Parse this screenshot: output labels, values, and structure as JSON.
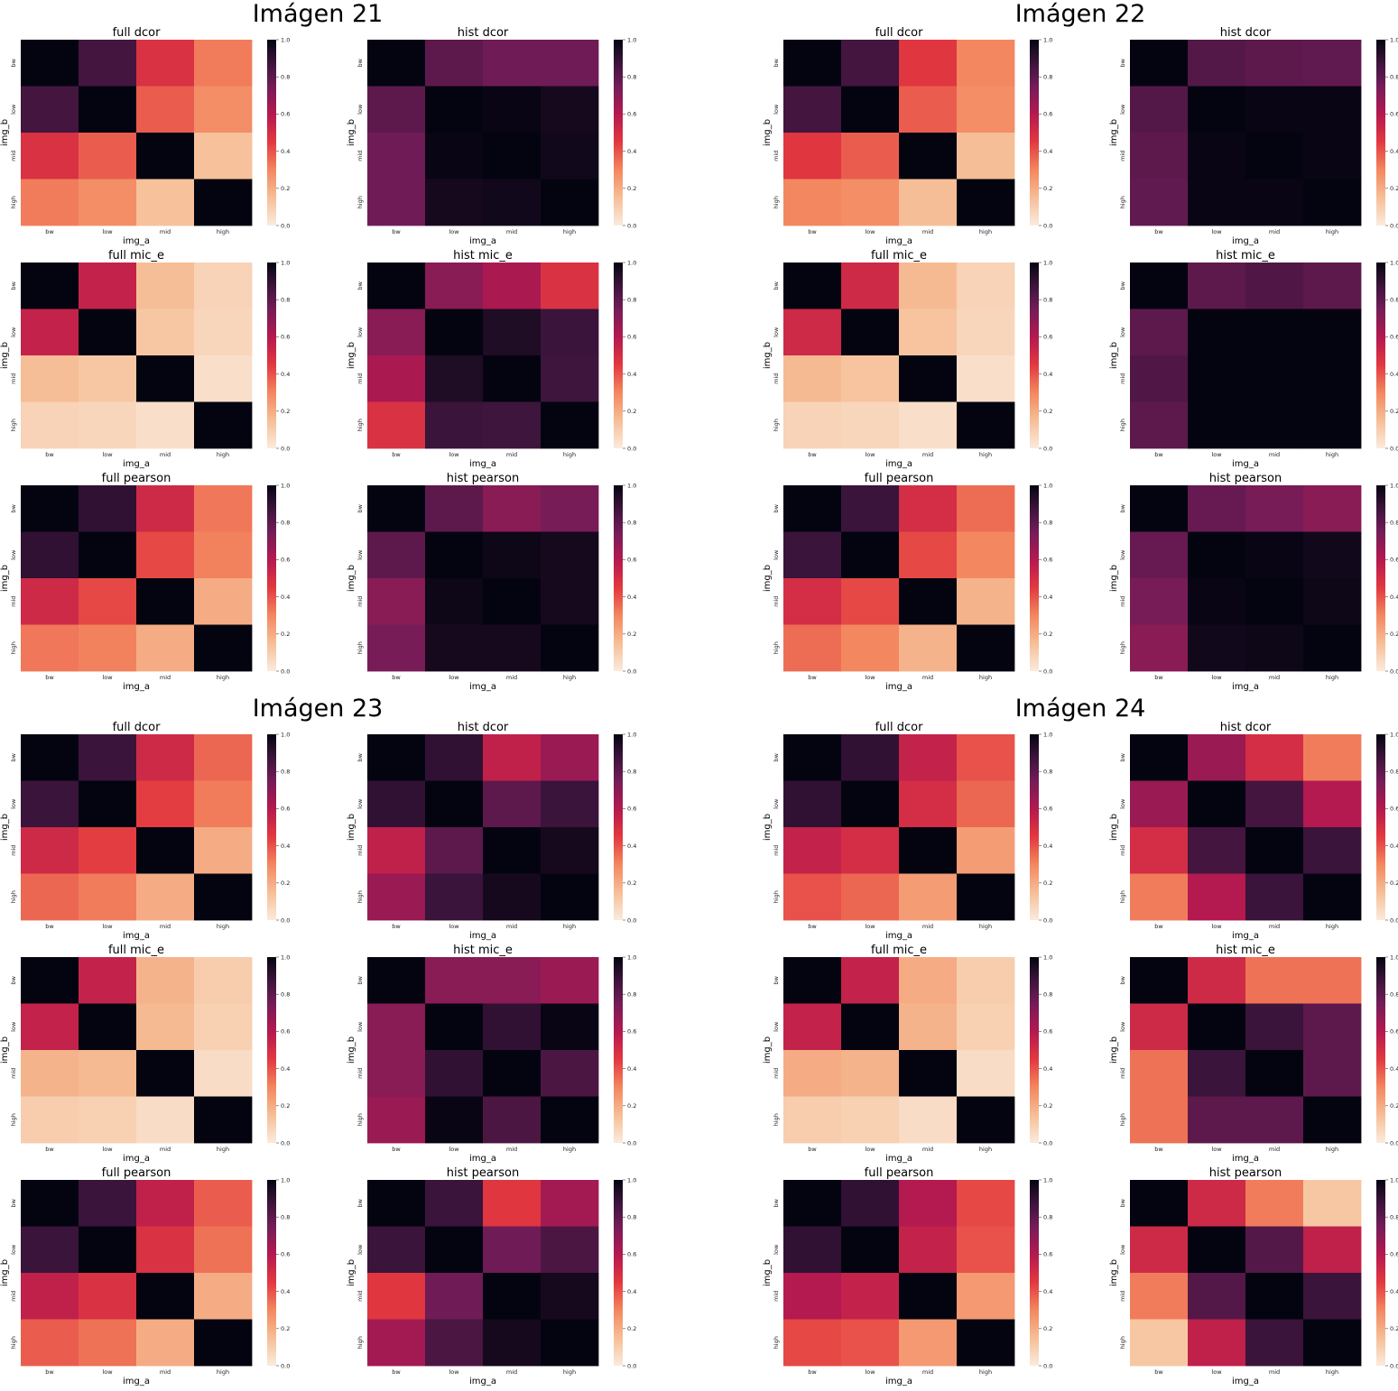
{
  "figure_titles": [
    "Imágen 21",
    "Imágen 22",
    "Imágen 23",
    "Imágen 24"
  ],
  "tick_labels": [
    "bw",
    "low",
    "mid",
    "high"
  ],
  "xlabel": "img_a",
  "ylabel": "img_b",
  "colorbar_ticks": [
    "0.0",
    "0.2",
    "0.4",
    "0.6",
    "0.8",
    "1.0"
  ],
  "chart_data": [
    {
      "type": "heatmap",
      "figure": 0,
      "title": "full dcor",
      "vmin": 0,
      "vmax": 1,
      "values": [
        [
          1.0,
          0.86,
          0.48,
          0.32
        ],
        [
          0.86,
          1.0,
          0.38,
          0.28
        ],
        [
          0.48,
          0.38,
          1.0,
          0.14
        ],
        [
          0.32,
          0.28,
          0.14,
          1.0
        ]
      ]
    },
    {
      "type": "heatmap",
      "figure": 0,
      "title": "hist dcor",
      "vmin": 0,
      "vmax": 1,
      "values": [
        [
          1.0,
          0.8,
          0.76,
          0.76
        ],
        [
          0.8,
          1.0,
          0.99,
          0.96
        ],
        [
          0.76,
          0.99,
          1.0,
          0.97
        ],
        [
          0.76,
          0.96,
          0.97,
          1.0
        ]
      ]
    },
    {
      "type": "heatmap",
      "figure": 0,
      "title": "full mic_e",
      "vmin": 0,
      "vmax": 1,
      "values": [
        [
          1.0,
          0.55,
          0.15,
          0.08
        ],
        [
          0.55,
          1.0,
          0.12,
          0.07
        ],
        [
          0.15,
          0.12,
          1.0,
          0.04
        ],
        [
          0.08,
          0.07,
          0.04,
          1.0
        ]
      ]
    },
    {
      "type": "heatmap",
      "figure": 0,
      "title": "hist mic_e",
      "vmin": 0,
      "vmax": 1,
      "values": [
        [
          1.0,
          0.7,
          0.62,
          0.48
        ],
        [
          0.7,
          1.0,
          0.94,
          0.88
        ],
        [
          0.62,
          0.94,
          1.0,
          0.87
        ],
        [
          0.48,
          0.88,
          0.87,
          1.0
        ]
      ]
    },
    {
      "type": "heatmap",
      "figure": 0,
      "title": "full pearson",
      "vmin": 0,
      "vmax": 1,
      "values": [
        [
          1.0,
          0.9,
          0.52,
          0.33
        ],
        [
          0.9,
          1.0,
          0.42,
          0.31
        ],
        [
          0.52,
          0.42,
          1.0,
          0.2
        ],
        [
          0.33,
          0.31,
          0.2,
          1.0
        ]
      ]
    },
    {
      "type": "heatmap",
      "figure": 0,
      "title": "hist pearson",
      "vmin": 0,
      "vmax": 1,
      "values": [
        [
          1.0,
          0.8,
          0.7,
          0.74
        ],
        [
          0.8,
          1.0,
          0.98,
          0.96
        ],
        [
          0.7,
          0.98,
          1.0,
          0.96
        ],
        [
          0.74,
          0.96,
          0.96,
          1.0
        ]
      ]
    },
    {
      "type": "heatmap",
      "figure": 1,
      "title": "full dcor",
      "vmin": 0,
      "vmax": 1,
      "values": [
        [
          1.0,
          0.86,
          0.46,
          0.3
        ],
        [
          0.86,
          1.0,
          0.38,
          0.28
        ],
        [
          0.46,
          0.38,
          1.0,
          0.15
        ],
        [
          0.3,
          0.28,
          0.15,
          1.0
        ]
      ]
    },
    {
      "type": "heatmap",
      "figure": 1,
      "title": "hist dcor",
      "vmin": 0,
      "vmax": 1,
      "values": [
        [
          1.0,
          0.82,
          0.8,
          0.79
        ],
        [
          0.82,
          1.0,
          0.99,
          0.99
        ],
        [
          0.8,
          0.99,
          1.0,
          0.99
        ],
        [
          0.79,
          0.99,
          0.99,
          1.0
        ]
      ]
    },
    {
      "type": "heatmap",
      "figure": 1,
      "title": "full mic_e",
      "vmin": 0,
      "vmax": 1,
      "values": [
        [
          1.0,
          0.52,
          0.16,
          0.08
        ],
        [
          0.52,
          1.0,
          0.13,
          0.07
        ],
        [
          0.16,
          0.13,
          1.0,
          0.04
        ],
        [
          0.08,
          0.07,
          0.04,
          1.0
        ]
      ]
    },
    {
      "type": "heatmap",
      "figure": 1,
      "title": "hist mic_e",
      "vmin": 0,
      "vmax": 1,
      "values": [
        [
          1.0,
          0.8,
          0.83,
          0.8
        ],
        [
          0.8,
          1.0,
          1.0,
          1.0
        ],
        [
          0.83,
          1.0,
          1.0,
          1.0
        ],
        [
          0.8,
          1.0,
          1.0,
          1.0
        ]
      ]
    },
    {
      "type": "heatmap",
      "figure": 1,
      "title": "full pearson",
      "vmin": 0,
      "vmax": 1,
      "values": [
        [
          1.0,
          0.88,
          0.5,
          0.35
        ],
        [
          0.88,
          1.0,
          0.42,
          0.3
        ],
        [
          0.5,
          0.42,
          1.0,
          0.18
        ],
        [
          0.35,
          0.3,
          0.18,
          1.0
        ]
      ]
    },
    {
      "type": "heatmap",
      "figure": 1,
      "title": "hist pearson",
      "vmin": 0,
      "vmax": 1,
      "values": [
        [
          1.0,
          0.78,
          0.74,
          0.7
        ],
        [
          0.78,
          1.0,
          0.99,
          0.97
        ],
        [
          0.74,
          0.99,
          1.0,
          0.98
        ],
        [
          0.7,
          0.97,
          0.98,
          1.0
        ]
      ]
    },
    {
      "type": "heatmap",
      "figure": 2,
      "title": "full dcor",
      "vmin": 0,
      "vmax": 1,
      "values": [
        [
          1.0,
          0.88,
          0.52,
          0.36
        ],
        [
          0.88,
          1.0,
          0.44,
          0.32
        ],
        [
          0.52,
          0.44,
          1.0,
          0.2
        ],
        [
          0.36,
          0.32,
          0.2,
          1.0
        ]
      ]
    },
    {
      "type": "heatmap",
      "figure": 2,
      "title": "hist dcor",
      "vmin": 0,
      "vmax": 1,
      "values": [
        [
          1.0,
          0.9,
          0.56,
          0.66
        ],
        [
          0.9,
          1.0,
          0.8,
          0.88
        ],
        [
          0.56,
          0.8,
          1.0,
          0.96
        ],
        [
          0.66,
          0.88,
          0.96,
          1.0
        ]
      ]
    },
    {
      "type": "heatmap",
      "figure": 2,
      "title": "full mic_e",
      "vmin": 0,
      "vmax": 1,
      "values": [
        [
          1.0,
          0.55,
          0.18,
          0.1
        ],
        [
          0.55,
          1.0,
          0.16,
          0.09
        ],
        [
          0.18,
          0.16,
          1.0,
          0.05
        ],
        [
          0.1,
          0.09,
          0.05,
          1.0
        ]
      ]
    },
    {
      "type": "heatmap",
      "figure": 2,
      "title": "hist mic_e",
      "vmin": 0,
      "vmax": 1,
      "values": [
        [
          1.0,
          0.7,
          0.7,
          0.66
        ],
        [
          0.7,
          1.0,
          0.9,
          0.99
        ],
        [
          0.7,
          0.9,
          1.0,
          0.84
        ],
        [
          0.66,
          0.99,
          0.84,
          1.0
        ]
      ]
    },
    {
      "type": "heatmap",
      "figure": 2,
      "title": "full pearson",
      "vmin": 0,
      "vmax": 1,
      "values": [
        [
          1.0,
          0.88,
          0.56,
          0.38
        ],
        [
          0.88,
          1.0,
          0.48,
          0.34
        ],
        [
          0.56,
          0.48,
          1.0,
          0.2
        ],
        [
          0.38,
          0.34,
          0.2,
          1.0
        ]
      ]
    },
    {
      "type": "heatmap",
      "figure": 2,
      "title": "hist pearson",
      "vmin": 0,
      "vmax": 1,
      "values": [
        [
          1.0,
          0.88,
          0.46,
          0.64
        ],
        [
          0.88,
          1.0,
          0.76,
          0.84
        ],
        [
          0.46,
          0.76,
          1.0,
          0.96
        ],
        [
          0.64,
          0.84,
          0.96,
          1.0
        ]
      ]
    },
    {
      "type": "heatmap",
      "figure": 3,
      "title": "full dcor",
      "vmin": 0,
      "vmax": 1,
      "values": [
        [
          1.0,
          0.9,
          0.55,
          0.4
        ],
        [
          0.9,
          1.0,
          0.5,
          0.36
        ],
        [
          0.55,
          0.5,
          1.0,
          0.24
        ],
        [
          0.4,
          0.36,
          0.24,
          1.0
        ]
      ]
    },
    {
      "type": "heatmap",
      "figure": 3,
      "title": "hist dcor",
      "vmin": 0,
      "vmax": 1,
      "values": [
        [
          1.0,
          0.66,
          0.5,
          0.32
        ],
        [
          0.66,
          1.0,
          0.86,
          0.6
        ],
        [
          0.5,
          0.86,
          1.0,
          0.88
        ],
        [
          0.32,
          0.6,
          0.88,
          1.0
        ]
      ]
    },
    {
      "type": "heatmap",
      "figure": 3,
      "title": "full mic_e",
      "vmin": 0,
      "vmax": 1,
      "values": [
        [
          1.0,
          0.55,
          0.2,
          0.1
        ],
        [
          0.55,
          1.0,
          0.18,
          0.09
        ],
        [
          0.2,
          0.18,
          1.0,
          0.05
        ],
        [
          0.1,
          0.09,
          0.05,
          1.0
        ]
      ]
    },
    {
      "type": "heatmap",
      "figure": 3,
      "title": "hist mic_e",
      "vmin": 0,
      "vmax": 1,
      "values": [
        [
          1.0,
          0.52,
          0.34,
          0.34
        ],
        [
          0.52,
          1.0,
          0.88,
          0.8
        ],
        [
          0.34,
          0.88,
          1.0,
          0.8
        ],
        [
          0.34,
          0.8,
          0.8,
          1.0
        ]
      ]
    },
    {
      "type": "heatmap",
      "figure": 3,
      "title": "full pearson",
      "vmin": 0,
      "vmax": 1,
      "values": [
        [
          1.0,
          0.9,
          0.6,
          0.42
        ],
        [
          0.9,
          1.0,
          0.55,
          0.4
        ],
        [
          0.6,
          0.55,
          1.0,
          0.25
        ],
        [
          0.42,
          0.4,
          0.25,
          1.0
        ]
      ]
    },
    {
      "type": "heatmap",
      "figure": 3,
      "title": "hist pearson",
      "vmin": 0,
      "vmax": 1,
      "values": [
        [
          1.0,
          0.52,
          0.32,
          0.12
        ],
        [
          0.52,
          1.0,
          0.82,
          0.56
        ],
        [
          0.32,
          0.82,
          1.0,
          0.88
        ],
        [
          0.12,
          0.56,
          0.88,
          1.0
        ]
      ]
    }
  ]
}
